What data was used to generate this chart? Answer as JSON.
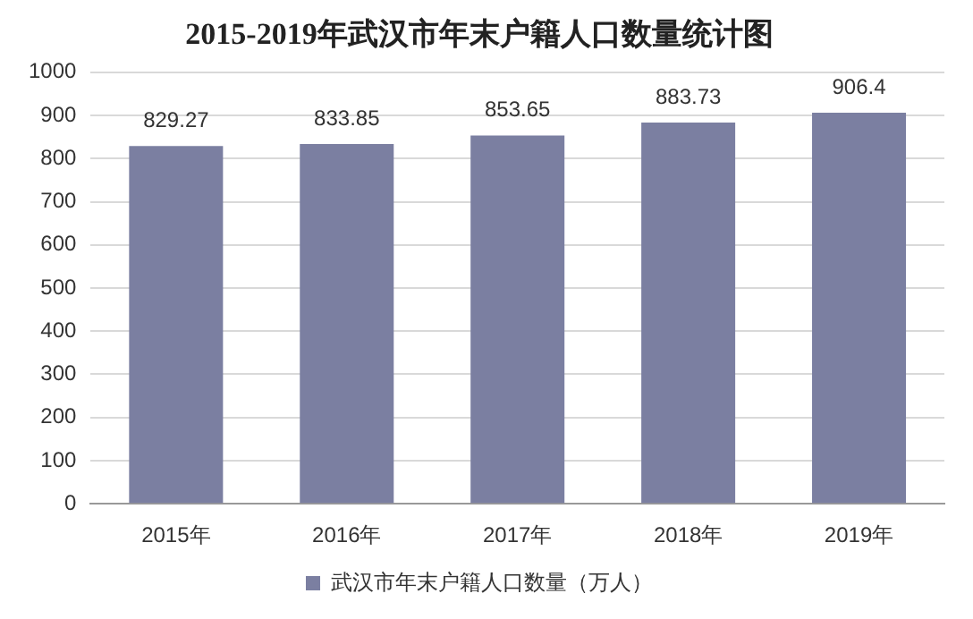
{
  "chart_data": {
    "type": "bar",
    "title": "2015-2019年武汉市年末户籍人口数量统计图",
    "categories": [
      "2015年",
      "2016年",
      "2017年",
      "2018年",
      "2019年"
    ],
    "series": [
      {
        "name": "武汉市年末户籍人口数量（万人）",
        "color": "#7b7fa1",
        "values": [
          829.27,
          833.85,
          853.65,
          883.73,
          906.4
        ]
      }
    ],
    "ylim": [
      0,
      1000
    ],
    "yticks": [
      0,
      100,
      200,
      300,
      400,
      500,
      600,
      700,
      800,
      900,
      1000
    ],
    "grid": "y",
    "legend": "bottom",
    "data_labels": true
  }
}
